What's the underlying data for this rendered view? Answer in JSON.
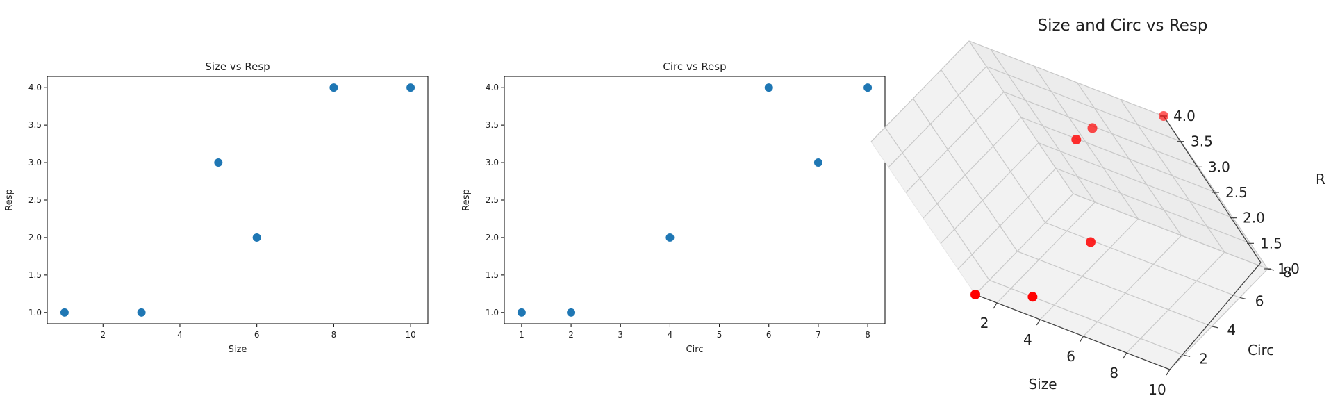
{
  "chart_data": [
    {
      "type": "scatter",
      "title": "Size vs Resp",
      "xlabel": "Size",
      "ylabel": "Resp",
      "x": [
        1,
        3,
        5,
        6,
        8,
        10
      ],
      "y": [
        1,
        1,
        3,
        2,
        4,
        4
      ],
      "xlim": [
        0.55,
        10.45
      ],
      "ylim": [
        0.85,
        4.15
      ],
      "xticks": [
        2,
        4,
        6,
        8,
        10
      ],
      "yticks": [
        1.0,
        1.5,
        2.0,
        2.5,
        3.0,
        3.5,
        4.0
      ],
      "color": "#1f77b4",
      "grid": false
    },
    {
      "type": "scatter",
      "title": "Circ vs Resp",
      "xlabel": "Circ",
      "ylabel": "Resp",
      "x": [
        1,
        2,
        4,
        6,
        7,
        8
      ],
      "y": [
        1,
        1,
        2,
        4,
        3,
        4
      ],
      "xlim": [
        0.65,
        8.35
      ],
      "ylim": [
        0.85,
        4.15
      ],
      "xticks": [
        1,
        2,
        3,
        4,
        5,
        6,
        7,
        8
      ],
      "yticks": [
        1.0,
        1.5,
        2.0,
        2.5,
        3.0,
        3.5,
        4.0
      ],
      "color": "#1f77b4",
      "grid": false
    },
    {
      "type": "scatter3d",
      "title": "Size and Circ vs Resp",
      "xlabel": "Size",
      "ylabel": "Circ",
      "zlabel": "R",
      "x": [
        1,
        3,
        5,
        6,
        8,
        10
      ],
      "y": [
        1,
        2,
        7,
        4,
        6,
        8
      ],
      "z": [
        1,
        1,
        3,
        2,
        4,
        4
      ],
      "xticks": [
        2,
        4,
        6,
        8,
        10
      ],
      "yticks": [
        2,
        4,
        6,
        8
      ],
      "zticks": [
        1.0,
        1.5,
        2.0,
        2.5,
        3.0,
        3.5,
        4.0
      ],
      "color": "#ff0000",
      "grid": true
    }
  ]
}
